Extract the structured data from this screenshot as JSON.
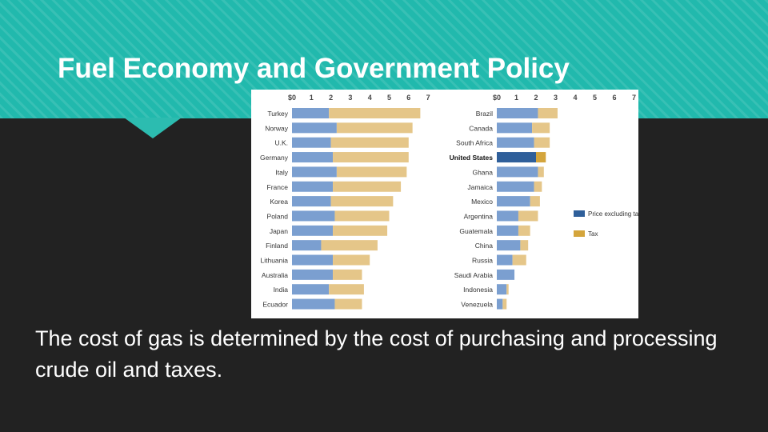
{
  "slide": {
    "title": "Fuel Economy and Government Policy",
    "body": "The cost of gas is determined by the cost of purchasing and processing crude oil and taxes."
  },
  "colors": {
    "banner": "#21b9ad",
    "background": "#222222",
    "price_bar": "#7b9fd0",
    "tax_bar": "#e5c689",
    "highlight_price_bar": "#2f5f9a",
    "highlight_tax_bar": "#d4a53c"
  },
  "chart_data": [
    {
      "type": "bar",
      "orientation": "horizontal",
      "stacked": true,
      "tick_labels": [
        "$0",
        "1",
        "2",
        "3",
        "4",
        "5",
        "6",
        "7"
      ],
      "xlim": [
        0,
        7
      ],
      "categories": [
        "Turkey",
        "Norway",
        "U.K.",
        "Germany",
        "Italy",
        "France",
        "Korea",
        "Poland",
        "Japan",
        "Finland",
        "Lithuania",
        "Australia",
        "India",
        "Ecuador"
      ],
      "series": [
        {
          "name": "Price excluding tax",
          "values": [
            1.9,
            2.3,
            2.0,
            2.1,
            2.3,
            2.1,
            2.0,
            2.2,
            2.1,
            1.5,
            2.1,
            2.1,
            1.9,
            2.2
          ]
        },
        {
          "name": "Tax",
          "values": [
            4.7,
            3.9,
            4.0,
            3.9,
            3.6,
            3.5,
            3.2,
            2.8,
            2.8,
            2.9,
            1.9,
            1.5,
            1.8,
            1.4
          ]
        }
      ]
    },
    {
      "type": "bar",
      "orientation": "horizontal",
      "stacked": true,
      "tick_labels": [
        "$0",
        "1",
        "2",
        "3",
        "4",
        "5",
        "6",
        "7"
      ],
      "xlim": [
        0,
        7
      ],
      "categories": [
        "Brazil",
        "Canada",
        "South Africa",
        "United States",
        "Ghana",
        "Jamaica",
        "Mexico",
        "Argentina",
        "Guatemala",
        "China",
        "Russia",
        "Saudi Arabia",
        "Indonesia",
        "Venezuela"
      ],
      "highlight": "United States",
      "series": [
        {
          "name": "Price excluding tax",
          "values": [
            2.1,
            1.8,
            1.9,
            2.0,
            2.1,
            1.9,
            1.7,
            1.1,
            1.1,
            1.2,
            0.8,
            0.9,
            0.5,
            0.3
          ]
        },
        {
          "name": "Tax",
          "values": [
            1.0,
            0.9,
            0.8,
            0.5,
            0.3,
            0.4,
            0.5,
            1.0,
            0.6,
            0.4,
            0.7,
            0.0,
            0.1,
            0.2
          ]
        }
      ],
      "legend_position": "right"
    }
  ]
}
